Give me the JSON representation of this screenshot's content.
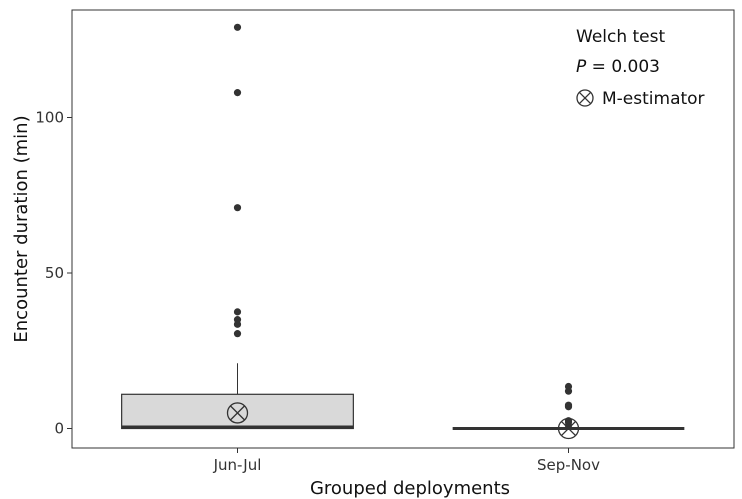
{
  "chart_data": {
    "type": "boxplot",
    "title": "",
    "xlabel": "Grouped deployments",
    "ylabel": "Encounter duration (min)",
    "ylim": [
      -5,
      130
    ],
    "yticks": [
      0,
      50,
      100
    ],
    "grid": false,
    "legend_position": "top-right",
    "annotations": {
      "test": "Welch test",
      "p_label": "P",
      "p_value": " = 0.003",
      "marker_label": "M-estimator"
    },
    "categories": [
      "Jun-Jul",
      "Sep-Nov"
    ],
    "boxes": [
      {
        "category": "Jun-Jul",
        "q1": 0,
        "median": 0.5,
        "q3": 11,
        "whisker_low": 0,
        "whisker_high": 21,
        "m_estimator": 5,
        "outliers": [
          30.5,
          33.5,
          35,
          37.5,
          71,
          108,
          129
        ]
      },
      {
        "category": "Sep-Nov",
        "q1": 0,
        "median": 0,
        "q3": 0,
        "whisker_low": 0,
        "whisker_high": 0,
        "m_estimator": 0,
        "outliers": [
          1,
          2,
          2.5,
          7,
          7.5,
          12,
          13.5
        ]
      }
    ],
    "colors": {
      "box_fill": "#d9d9d9",
      "box_line": "#333333",
      "point": "#333333"
    }
  }
}
